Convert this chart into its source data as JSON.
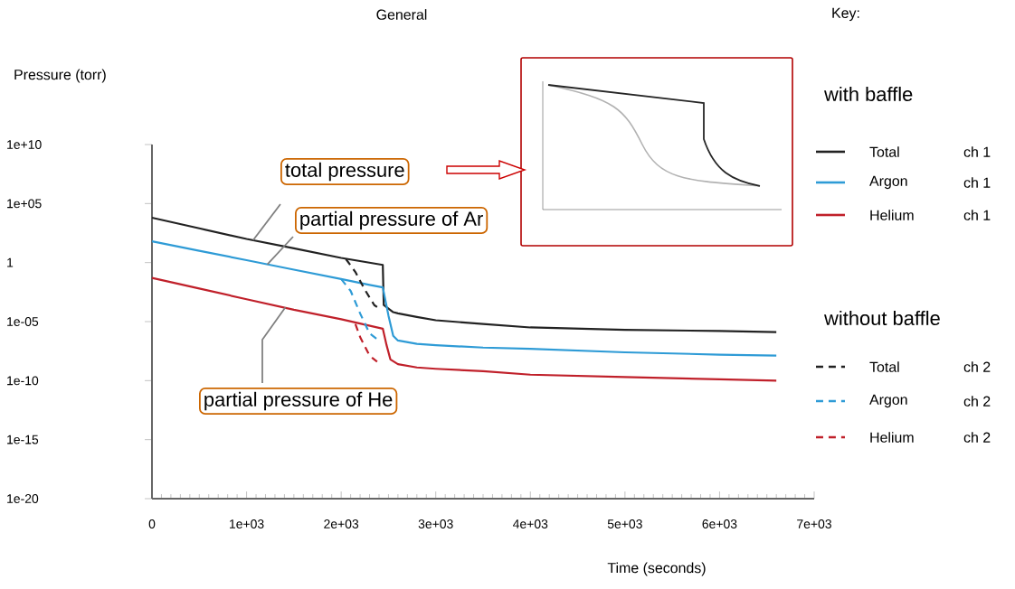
{
  "chart_data": {
    "type": "line",
    "title": "General",
    "xlabel": "Time (seconds)",
    "ylabel": "Pressure (torr)",
    "legend_title": "Key:",
    "legend": "right",
    "log": "y",
    "xlim": [
      0,
      7000
    ],
    "ylim": [
      1e-20,
      10000000000.0
    ],
    "xticks": [
      0,
      {
        "value": 1000,
        "label": "1e+03"
      },
      {
        "value": 2000,
        "label": "2e+03"
      },
      {
        "value": 3000,
        "label": "3e+03"
      },
      {
        "value": 4000,
        "label": "4e+03"
      },
      {
        "value": 5000,
        "label": "5e+03"
      },
      {
        "value": 6000,
        "label": "6e+03"
      },
      {
        "value": 7000,
        "label": "7e+03"
      }
    ],
    "yticks": [
      {
        "value": 10000000000.0,
        "label": "1e+10"
      },
      {
        "value": 100000.0,
        "label": "1e+05"
      },
      1,
      {
        "value": 1e-05,
        "label": "1e-05"
      },
      {
        "value": 1e-10,
        "label": "1e-10"
      },
      {
        "value": 1e-15,
        "label": "1e-15"
      },
      {
        "value": 1e-20,
        "label": "1e-20"
      }
    ],
    "series": [
      {
        "name": "Total",
        "color": "#222222",
        "line_style": "solid",
        "x": [
          0,
          500,
          1000,
          1500,
          2000,
          2440,
          2450,
          2550,
          2600,
          2800,
          3000,
          3500,
          4000,
          5000,
          6000,
          6600
        ],
        "values": [
          6300,
          790,
          100,
          16,
          2.5,
          0.63,
          0.00025,
          6.3e-05,
          5e-05,
          2.5e-05,
          1.3e-05,
          6.3e-06,
          3.2e-06,
          2e-06,
          1.6e-06,
          1.3e-06
        ]
      },
      {
        "name": "Argon",
        "color": "#2e9bd6",
        "line_style": "solid",
        "x": [
          0,
          500,
          1000,
          1500,
          2000,
          2300,
          2440,
          2500,
          2550,
          2600,
          2800,
          3000,
          3500,
          4000,
          5000,
          6000,
          6600
        ],
        "values": [
          63,
          10,
          1.6,
          0.25,
          0.04,
          0.013,
          0.0079,
          3.2e-05,
          6.3e-07,
          2.5e-07,
          1.3e-07,
          1e-07,
          6.3e-08,
          5e-08,
          2.5e-08,
          1.6e-08,
          1.3e-08
        ]
      },
      {
        "name": "Helium",
        "color": "#c0202a",
        "line_style": "solid",
        "x": [
          0,
          500,
          1000,
          1500,
          2000,
          2440,
          2480,
          2520,
          2600,
          2800,
          3000,
          3500,
          4000,
          5000,
          6000,
          6600
        ],
        "values": [
          0.05,
          0.0063,
          0.00079,
          0.0001,
          1.6e-05,
          2.5e-06,
          1e-07,
          6.3e-09,
          2.5e-09,
          1.3e-09,
          1e-09,
          6.3e-10,
          3.2e-10,
          2e-10,
          1.3e-10,
          1e-10
        ]
      },
      {
        "name": "Total",
        "color": "#222222",
        "line_style": "dashed",
        "x": [
          2050,
          2150,
          2250,
          2350,
          2420
        ],
        "values": [
          2,
          0.16,
          0.005,
          0.00025,
          0.0001
        ]
      },
      {
        "name": "Argon",
        "color": "#2e9bd6",
        "line_style": "dashed",
        "x": [
          2000,
          2100,
          2200,
          2300,
          2400
        ],
        "values": [
          0.04,
          0.004,
          5e-05,
          1e-06,
          2.5e-07
        ]
      },
      {
        "name": "Helium",
        "color": "#c0202a",
        "line_style": "dashed",
        "x": [
          2150,
          2200,
          2300,
          2380
        ],
        "values": [
          6.3e-06,
          5e-07,
          1.3e-08,
          4e-09
        ]
      }
    ],
    "annotations": [
      {
        "text": "total pressure",
        "x": 1070,
        "y": 80
      },
      {
        "text": "partial pressure of Ar",
        "x": 1220,
        "y": 0.7
      },
      {
        "text": "partial pressure of He",
        "x": 1410,
        "y": 0.00016
      },
      "with baffle",
      "ch 1",
      "ch 1",
      "ch 1",
      "without baffle",
      "ch 2",
      "ch 2",
      "ch 2"
    ]
  }
}
